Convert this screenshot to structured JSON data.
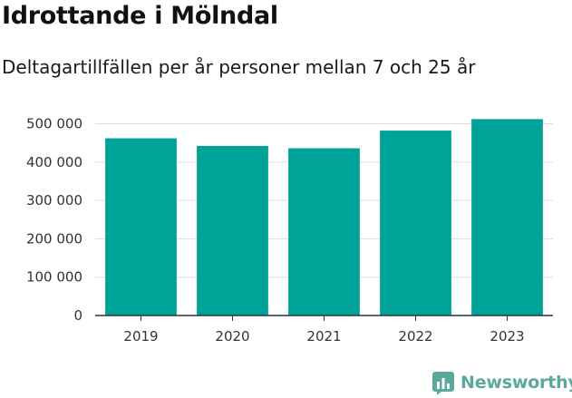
{
  "chart_data": {
    "type": "bar",
    "title": "Idrottande i Mölndal",
    "subtitle": "Deltagartillfällen per år personer mellan 7 och 25 år",
    "categories": [
      "2019",
      "2020",
      "2021",
      "2022",
      "2023"
    ],
    "values": [
      462000,
      442000,
      436000,
      482000,
      512000
    ],
    "ylim": [
      0,
      520000
    ],
    "yticks": [
      0,
      100000,
      200000,
      300000,
      400000,
      500000
    ],
    "ytick_labels": [
      "0",
      "100 000",
      "200 000",
      "300 000",
      "400 000",
      "500 000"
    ],
    "xlabel": "",
    "ylabel": "",
    "grid": true,
    "bar_color": "#00a398",
    "grid_color": "#dddddd",
    "axis_color": "#333333"
  },
  "brand": {
    "name": "Newsworthy",
    "icon": "newsworthy-logo-icon",
    "color": "#5aa99b"
  }
}
